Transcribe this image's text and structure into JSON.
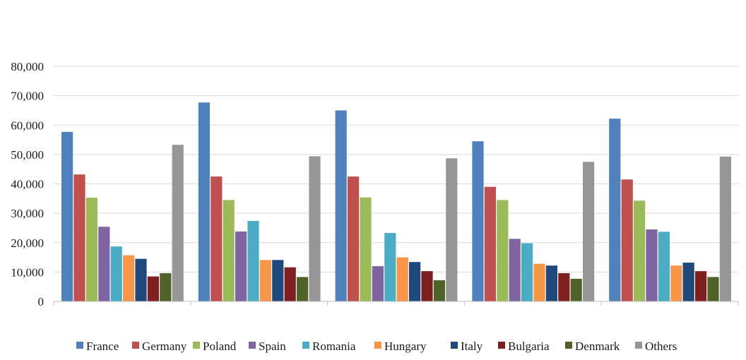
{
  "chart_data": {
    "type": "bar",
    "title": "",
    "xlabel": "",
    "ylabel": "",
    "ylim": [
      0,
      80000
    ],
    "yticks": [
      0,
      10000,
      20000,
      30000,
      40000,
      50000,
      60000,
      70000,
      80000
    ],
    "ytick_labels": [
      "0",
      "10,000",
      "20,000",
      "30,000",
      "40,000",
      "50,000",
      "60,000",
      "70,000",
      "80,000"
    ],
    "grid": true,
    "legend_position": "bottom",
    "categories": [
      "",
      "",
      "",
      "",
      ""
    ],
    "series": [
      {
        "name": "France",
        "color": "#4f81bd",
        "values": [
          57700,
          67700,
          65000,
          54500,
          62200
        ]
      },
      {
        "name": "Germany",
        "color": "#c0504d",
        "values": [
          43200,
          42500,
          42500,
          39000,
          41500
        ]
      },
      {
        "name": "Poland",
        "color": "#9bbb59",
        "values": [
          35300,
          34500,
          35400,
          34500,
          34300
        ]
      },
      {
        "name": "Spain",
        "color": "#8064a2",
        "values": [
          25400,
          23800,
          12000,
          21300,
          24500
        ]
      },
      {
        "name": "Romania",
        "color": "#4bacc6",
        "values": [
          18700,
          27400,
          23300,
          19800,
          23700
        ]
      },
      {
        "name": "Hungary",
        "color": "#f79646",
        "values": [
          15700,
          14100,
          15000,
          12800,
          12200
        ]
      },
      {
        "name": "Italy",
        "color": "#1f497d",
        "values": [
          14500,
          14100,
          13400,
          12200,
          13200
        ]
      },
      {
        "name": "Bulgaria",
        "color": "#7f1f1f",
        "values": [
          8500,
          11600,
          10300,
          9600,
          10300
        ]
      },
      {
        "name": "Denmark",
        "color": "#4f6228",
        "values": [
          9600,
          8300,
          7200,
          7700,
          8300
        ]
      },
      {
        "name": "Others",
        "color": "#969696",
        "values": [
          53300,
          49400,
          48700,
          47500,
          49300
        ]
      }
    ]
  }
}
